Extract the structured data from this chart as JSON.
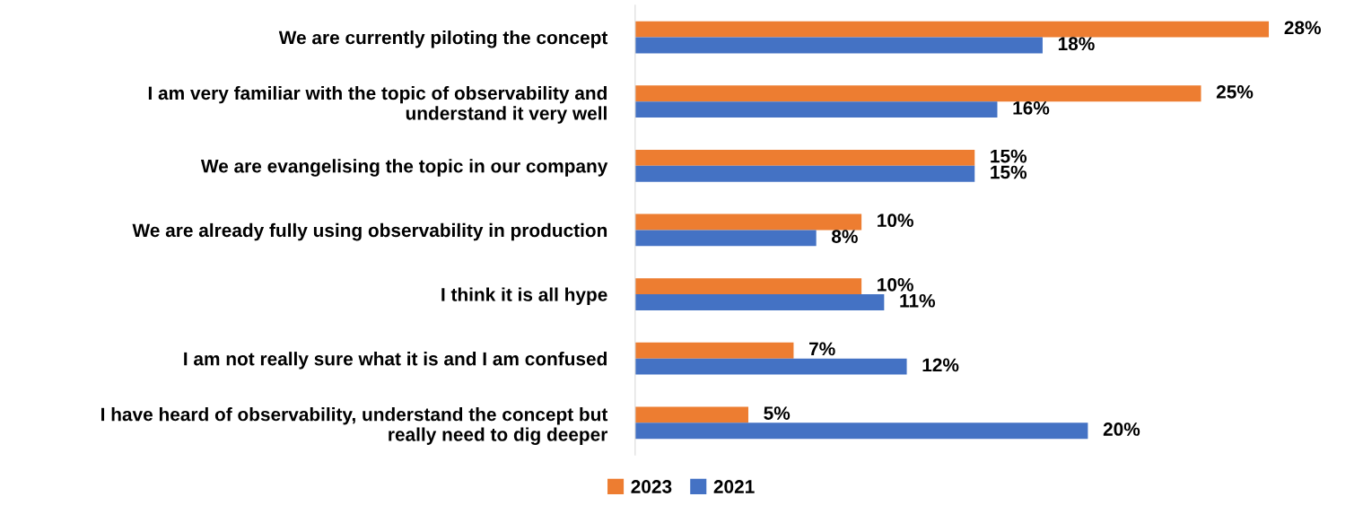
{
  "chart_data": {
    "type": "bar",
    "orientation": "horizontal",
    "categories": [
      "We are currently piloting the concept",
      "I am very familiar with the topic of observability and\nunderstand it very well",
      "We are evangelising the topic in our company",
      "We are already fully using observability in production",
      "I think it is all hype",
      "I am not really sure what it is and I am confused",
      "I have heard of observability, understand the concept but\nreally need to dig deeper"
    ],
    "series": [
      {
        "name": "2023",
        "color": "#ed7d31",
        "values": [
          28,
          25,
          15,
          10,
          10,
          7,
          5
        ],
        "value_labels": [
          "28%",
          "25%",
          "15%",
          "10%",
          "10%",
          "7%",
          "5%"
        ]
      },
      {
        "name": "2021",
        "color": "#4472c4",
        "values": [
          18,
          16,
          15,
          8,
          11,
          12,
          20
        ],
        "value_labels": [
          "18%",
          "16%",
          "15%",
          "8%",
          "11%",
          "12%",
          "20%"
        ]
      }
    ],
    "legend": "bottom",
    "grid": false,
    "tick_labels": "y"
  }
}
